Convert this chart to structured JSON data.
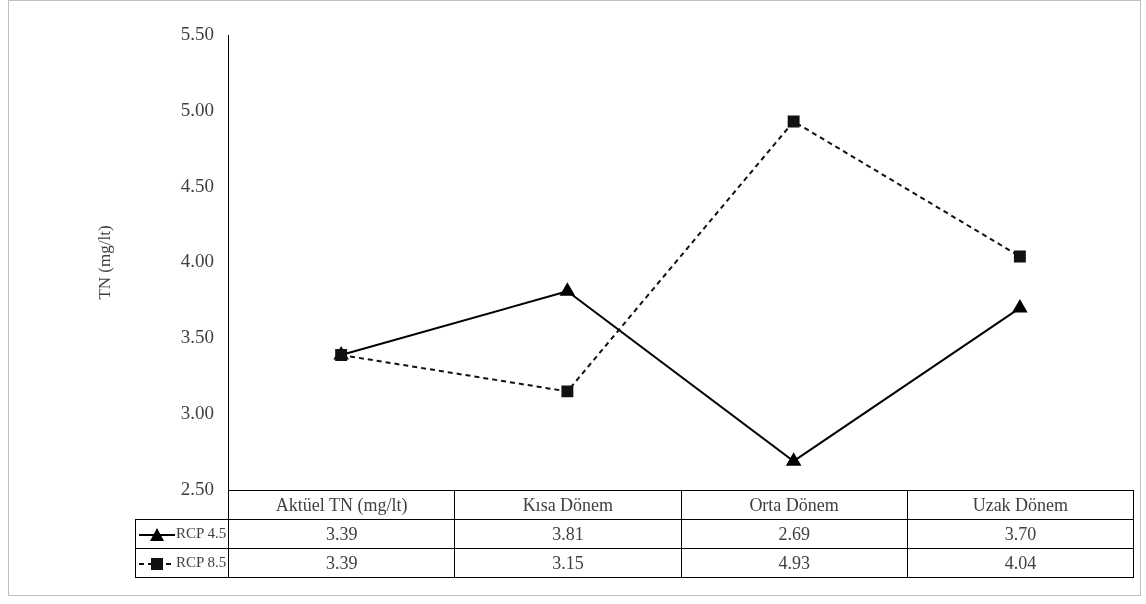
{
  "chart_data": {
    "type": "line",
    "ylabel": "TN (mg/lt)",
    "categories": [
      "Aktüel TN (mg/lt)",
      "Kısa Dönem",
      "Orta Dönem",
      "Uzak Dönem"
    ],
    "series": [
      {
        "name": "RCP 4.5",
        "color": "#000000",
        "values": [
          3.39,
          3.81,
          2.69,
          3.7
        ],
        "value_labels": [
          "3.39",
          "3.81",
          "2.69",
          "3.70"
        ],
        "marker": "triangle",
        "line_style": "solid"
      },
      {
        "name": "RCP 8.5",
        "color": "#111111",
        "values": [
          3.39,
          3.15,
          4.93,
          4.04
        ],
        "value_labels": [
          "3.39",
          "3.15",
          "4.93",
          "4.04"
        ],
        "marker": "square",
        "line_style": "dashed"
      }
    ],
    "ylim": [
      2.5,
      5.5
    ],
    "yticks": [
      {
        "value": 2.5,
        "label": "2.50"
      },
      {
        "value": 3,
        "label": "3.00"
      },
      {
        "value": 3.5,
        "label": "3.50"
      },
      {
        "value": 4,
        "label": "4.00"
      },
      {
        "value": 4.5,
        "label": "4.50"
      },
      {
        "value": 5,
        "label": "5.00"
      },
      {
        "value": 5.5,
        "label": "5.50"
      }
    ],
    "grid": false,
    "legend": "bottom"
  }
}
